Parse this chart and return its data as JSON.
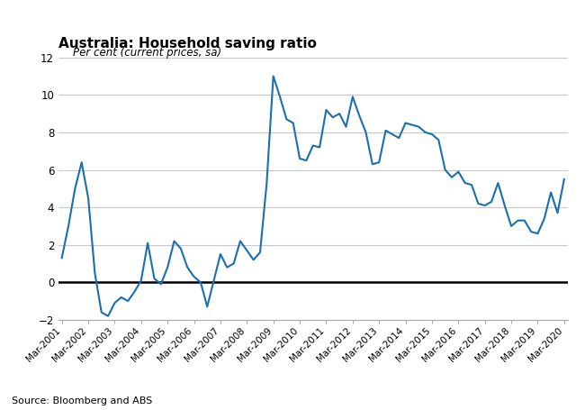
{
  "title": "Australia: Household saving ratio",
  "subtitle": "Per cent (current prices, sa)",
  "source": "Source: Bloomberg and ABS",
  "line_color": "#1a6faf",
  "background_color": "#ffffff",
  "grid_color": "#c8c8c8",
  "ylim": [
    -2,
    12
  ],
  "yticks": [
    -2,
    0,
    2,
    4,
    6,
    8,
    10,
    12
  ],
  "x_labels": [
    "Mar-2001",
    "Mar-2002",
    "Mar-2003",
    "Mar-2004",
    "Mar-2005",
    "Mar-2006",
    "Mar-2007",
    "Mar-2008",
    "Mar-2009",
    "Mar-2010",
    "Mar-2011",
    "Mar-2012",
    "Mar-2013",
    "Mar-2014",
    "Mar-2015",
    "Mar-2016",
    "Mar-2017",
    "Mar-2018",
    "Mar-2019",
    "Mar-2020"
  ],
  "values": [
    1.3,
    3.0,
    5.0,
    6.4,
    4.5,
    0.5,
    -1.6,
    -1.8,
    -1.1,
    -0.8,
    -1.0,
    -0.5,
    0.1,
    2.1,
    0.2,
    -0.1,
    0.8,
    2.2,
    1.8,
    0.8,
    0.3,
    0.0,
    -1.3,
    0.1,
    1.5,
    0.8,
    1.0,
    2.2,
    1.7,
    1.2,
    1.6,
    5.3,
    11.0,
    9.9,
    8.7,
    8.5,
    6.6,
    6.5,
    7.3,
    7.2,
    9.2,
    8.8,
    9.0,
    8.3,
    9.9,
    8.9,
    8.0,
    6.3,
    6.4,
    8.1,
    7.9,
    7.7,
    8.5,
    8.4,
    8.3,
    8.0,
    7.9,
    7.6,
    6.0,
    5.6,
    5.9,
    5.3,
    5.2,
    4.2,
    4.1,
    4.3,
    5.3,
    4.1,
    3.0,
    3.3,
    3.3,
    2.7,
    2.6,
    3.4,
    4.8,
    3.7,
    5.5
  ]
}
